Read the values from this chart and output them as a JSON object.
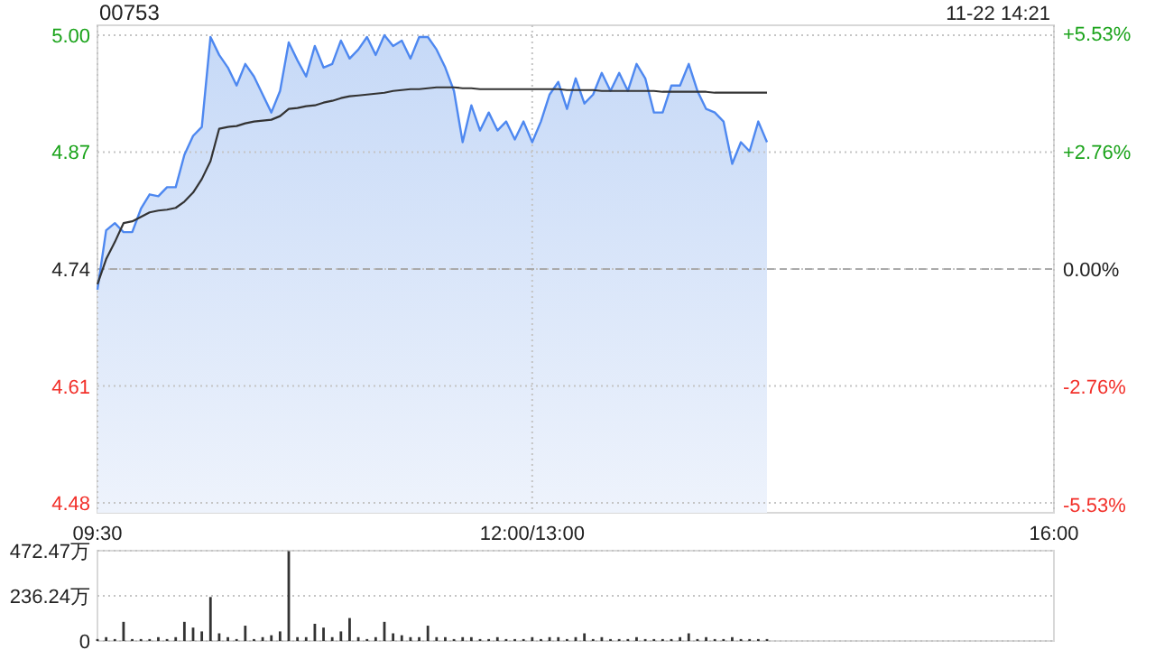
{
  "chart_data": [
    {
      "type": "line",
      "title": "00753",
      "subtitle": "11-22 14:21",
      "categories": [
        "09:30",
        null,
        null,
        null,
        null,
        null,
        null,
        null,
        null,
        null,
        null,
        null,
        null,
        null,
        null,
        null,
        null,
        null,
        null,
        null,
        null,
        null,
        null,
        null,
        null,
        null,
        null,
        null,
        null,
        null,
        null,
        null,
        null,
        null,
        null,
        null,
        null,
        null,
        null,
        null,
        null,
        null,
        null,
        null,
        null,
        null,
        null,
        null,
        null,
        null,
        "12:00/13:00",
        null,
        null,
        null,
        null,
        null,
        null,
        null,
        null,
        null,
        null,
        null,
        null,
        null,
        null,
        null,
        null,
        null,
        null,
        null,
        null,
        null,
        null,
        null,
        null,
        null,
        null,
        null,
        null,
        null,
        null,
        null,
        null,
        null,
        null,
        null,
        null,
        null,
        null,
        null,
        null,
        null,
        null,
        null,
        null,
        null,
        null,
        null,
        null,
        null,
        null,
        null,
        null,
        null,
        null,
        null,
        null,
        null,
        null,
        null,
        "16:00"
      ],
      "ylim": [
        4.469,
        5.011
      ],
      "y2lim": [
        -5.72,
        5.72
      ],
      "yticks": [
        4.48,
        4.61,
        4.74,
        4.87,
        {
          "value": 5.0,
          "label": "5.00"
        }
      ],
      "y2ticks": [
        {
          "value": -5.53,
          "label": "-5.53%"
        },
        {
          "value": -2.76,
          "label": "-2.76%"
        },
        {
          "value": 0,
          "label": "0.00%"
        },
        {
          "value": 2.76,
          "label": "+2.76%"
        },
        {
          "value": 5.53,
          "label": "+5.53%"
        }
      ],
      "grid": true,
      "ref_lines": [
        {
          "axis": "y",
          "value": 4.74,
          "color": "#aaaaaa",
          "line_style": "dashed"
        }
      ],
      "series": [
        {
          "type": "area",
          "color": "#4e88f0",
          "values": [
            4.717,
            4.783,
            4.791,
            4.781,
            4.781,
            4.807,
            4.823,
            4.821,
            4.831,
            4.831,
            4.867,
            4.888,
            4.898,
            4.998,
            4.978,
            4.964,
            4.944,
            4.968,
            4.954,
            4.934,
            4.914,
            4.938,
            4.992,
            4.972,
            4.954,
            4.988,
            4.964,
            4.968,
            4.994,
            4.974,
            4.984,
            4.998,
            4.978,
            5.0,
            4.988,
            4.994,
            4.974,
            4.998,
            4.998,
            4.984,
            4.964,
            4.938,
            4.881,
            4.922,
            4.894,
            4.914,
            4.894,
            4.904,
            4.884,
            4.904,
            4.881,
            4.904,
            4.934,
            4.948,
            4.918,
            4.952,
            4.924,
            4.934,
            4.958,
            4.938,
            4.958,
            4.938,
            4.968,
            4.952,
            4.914,
            4.914,
            4.944,
            4.944,
            4.968,
            4.938,
            4.918,
            4.914,
            4.904,
            4.857,
            4.881,
            4.871,
            4.904,
            4.881,
            null,
            null,
            null,
            null,
            null,
            null,
            null,
            null,
            null,
            null,
            null,
            null,
            null,
            null,
            null,
            null,
            null,
            null,
            null,
            null,
            null,
            null,
            null,
            null,
            null,
            null,
            null,
            null,
            null,
            null,
            null,
            null,
            null
          ]
        },
        {
          "color": "#333333",
          "values": [
            4.723,
            4.751,
            4.77,
            4.791,
            4.793,
            4.798,
            4.803,
            4.805,
            4.806,
            4.808,
            4.815,
            4.825,
            4.84,
            4.86,
            4.896,
            4.898,
            4.899,
            4.902,
            4.904,
            4.905,
            4.906,
            4.91,
            4.918,
            4.919,
            4.921,
            4.922,
            4.925,
            4.927,
            4.93,
            4.932,
            4.933,
            4.934,
            4.935,
            4.936,
            4.938,
            4.939,
            4.94,
            4.94,
            4.941,
            4.942,
            4.942,
            4.942,
            4.941,
            4.941,
            4.94,
            4.94,
            4.94,
            4.94,
            4.94,
            4.94,
            4.94,
            4.94,
            4.94,
            4.94,
            4.939,
            4.939,
            4.939,
            4.939,
            4.938,
            4.938,
            4.938,
            4.938,
            4.938,
            4.938,
            4.938,
            4.937,
            4.937,
            4.937,
            4.937,
            4.937,
            4.937,
            4.936,
            4.936,
            4.936,
            4.936,
            4.936,
            4.936,
            4.936,
            null,
            null,
            null,
            null,
            null,
            null,
            null,
            null,
            null,
            null,
            null,
            null,
            null,
            null,
            null,
            null,
            null,
            null,
            null,
            null,
            null,
            null,
            null,
            null,
            null,
            null,
            null,
            null,
            null,
            null,
            null,
            null,
            null
          ]
        }
      ]
    },
    {
      "type": "bar",
      "color": "#333333",
      "categories": [
        null,
        null,
        null,
        null,
        null,
        null,
        null,
        null,
        null,
        null,
        null,
        null,
        null,
        null,
        null,
        null,
        null,
        null,
        null,
        null,
        null,
        null,
        null,
        null,
        null,
        null,
        null,
        null,
        null,
        null,
        null,
        null,
        null,
        null,
        null,
        null,
        null,
        null,
        null,
        null,
        null,
        null,
        null,
        null,
        null,
        null,
        null,
        null,
        null,
        null,
        null,
        null,
        null,
        null,
        null,
        null,
        null,
        null,
        null,
        null,
        null,
        null,
        null,
        null,
        null,
        null,
        null,
        null,
        null,
        null,
        null,
        null,
        null,
        null,
        null,
        null,
        null,
        null,
        null,
        null,
        null,
        null,
        null,
        null,
        null,
        null,
        null,
        null,
        null,
        null,
        null,
        null,
        null,
        null,
        null,
        null,
        null,
        null,
        null,
        null,
        null,
        null,
        null,
        null,
        null,
        null,
        null,
        null,
        null,
        null,
        null
      ],
      "ylim": [
        0,
        472.47
      ],
      "yticks": [
        0,
        {
          "value": 236.24,
          "label": "236.24万"
        },
        {
          "value": 472.47,
          "label": "472.47万"
        }
      ],
      "grid": "y",
      "tick_labels": "y",
      "values": [
        10,
        20,
        10,
        100,
        10,
        10,
        10,
        20,
        10,
        20,
        100,
        70,
        50,
        230,
        40,
        20,
        10,
        80,
        10,
        20,
        30,
        50,
        470,
        20,
        20,
        90,
        70,
        20,
        50,
        120,
        20,
        10,
        20,
        100,
        40,
        30,
        20,
        20,
        80,
        20,
        20,
        10,
        20,
        20,
        10,
        10,
        20,
        10,
        10,
        10,
        20,
        10,
        20,
        20,
        10,
        20,
        40,
        10,
        20,
        10,
        10,
        10,
        20,
        10,
        10,
        10,
        10,
        20,
        40,
        10,
        20,
        10,
        10,
        20,
        10,
        10,
        10,
        10,
        null,
        null,
        null,
        null,
        null,
        null,
        null,
        null,
        null,
        null,
        null,
        null,
        null,
        null,
        null,
        null,
        null,
        null,
        null,
        null,
        null,
        null,
        null,
        null,
        null,
        null,
        null,
        null,
        null,
        null,
        null,
        null,
        null
      ]
    }
  ]
}
